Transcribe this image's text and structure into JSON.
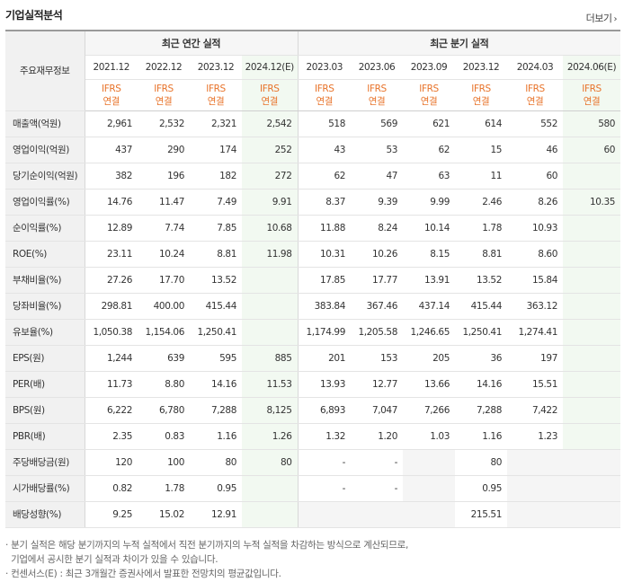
{
  "header": {
    "title": "기업실적분석",
    "more_label": "더보기"
  },
  "table": {
    "label_header": "주요재무정보",
    "groups": {
      "annual": "최근 연간 실적",
      "quarterly": "최근 분기 실적"
    },
    "periods": [
      "2021.12",
      "2022.12",
      "2023.12",
      "2024.12(E)",
      "2023.03",
      "2023.06",
      "2023.09",
      "2023.12",
      "2024.03",
      "2024.06(E)"
    ],
    "acct_top": "IFRS",
    "acct_bottom": "연결",
    "rows": [
      {
        "label": "매출액(억원)",
        "values": [
          "2,961",
          "2,532",
          "2,321",
          "2,542",
          "518",
          "569",
          "621",
          "614",
          "552",
          "580"
        ]
      },
      {
        "label": "영업이익(억원)",
        "values": [
          "437",
          "290",
          "174",
          "252",
          "43",
          "53",
          "62",
          "15",
          "46",
          "60"
        ]
      },
      {
        "label": "당기순이익(억원)",
        "values": [
          "382",
          "196",
          "182",
          "272",
          "62",
          "47",
          "63",
          "11",
          "60",
          ""
        ]
      },
      {
        "label": "영업이익률(%)",
        "values": [
          "14.76",
          "11.47",
          "7.49",
          "9.91",
          "8.37",
          "9.39",
          "9.99",
          "2.46",
          "8.26",
          "10.35"
        ]
      },
      {
        "label": "순이익률(%)",
        "values": [
          "12.89",
          "7.74",
          "7.85",
          "10.68",
          "11.88",
          "8.24",
          "10.14",
          "1.78",
          "10.93",
          ""
        ]
      },
      {
        "label": "ROE(%)",
        "values": [
          "23.11",
          "10.24",
          "8.81",
          "11.98",
          "10.31",
          "10.26",
          "8.15",
          "8.81",
          "8.60",
          ""
        ]
      },
      {
        "label": "부채비율(%)",
        "values": [
          "27.26",
          "17.70",
          "13.52",
          "",
          "17.85",
          "17.77",
          "13.91",
          "13.52",
          "15.84",
          ""
        ]
      },
      {
        "label": "당좌비율(%)",
        "values": [
          "298.81",
          "400.00",
          "415.44",
          "",
          "383.84",
          "367.46",
          "437.14",
          "415.44",
          "363.12",
          ""
        ]
      },
      {
        "label": "유보율(%)",
        "values": [
          "1,050.38",
          "1,154.06",
          "1,250.41",
          "",
          "1,174.99",
          "1,205.58",
          "1,246.65",
          "1,250.41",
          "1,274.41",
          ""
        ]
      },
      {
        "label": "EPS(원)",
        "values": [
          "1,244",
          "639",
          "595",
          "885",
          "201",
          "153",
          "205",
          "36",
          "197",
          ""
        ]
      },
      {
        "label": "PER(배)",
        "values": [
          "11.73",
          "8.80",
          "14.16",
          "11.53",
          "13.93",
          "12.77",
          "13.66",
          "14.16",
          "15.51",
          ""
        ]
      },
      {
        "label": "BPS(원)",
        "values": [
          "6,222",
          "6,780",
          "7,288",
          "8,125",
          "6,893",
          "7,047",
          "7,266",
          "7,288",
          "7,422",
          ""
        ]
      },
      {
        "label": "PBR(배)",
        "values": [
          "2.35",
          "0.83",
          "1.16",
          "1.26",
          "1.32",
          "1.20",
          "1.03",
          "1.16",
          "1.23",
          ""
        ]
      },
      {
        "label": "주당배당금(원)",
        "values": [
          "120",
          "100",
          "80",
          "80",
          "-",
          "-",
          "",
          "80",
          "",
          ""
        ]
      },
      {
        "label": "시가배당률(%)",
        "values": [
          "0.82",
          "1.78",
          "0.95",
          "",
          "-",
          "-",
          "",
          "0.95",
          "",
          ""
        ]
      },
      {
        "label": "배당성향(%)",
        "values": [
          "9.25",
          "15.02",
          "12.91",
          "",
          "",
          "",
          "",
          "215.51",
          "",
          ""
        ]
      }
    ]
  },
  "notes": [
    "· 분기 실적은 해당 분기까지의 누적 실적에서 직전 분기까지의 누적 실적을 차감하는 방식으로 계산되므로,",
    "  기업에서 공시한 분기 실적과 차이가 있을 수 있습니다.",
    "· 컨센서스(E) : 최근 3개월간 증권사에서 발표한 전망치의 평균값입니다."
  ]
}
